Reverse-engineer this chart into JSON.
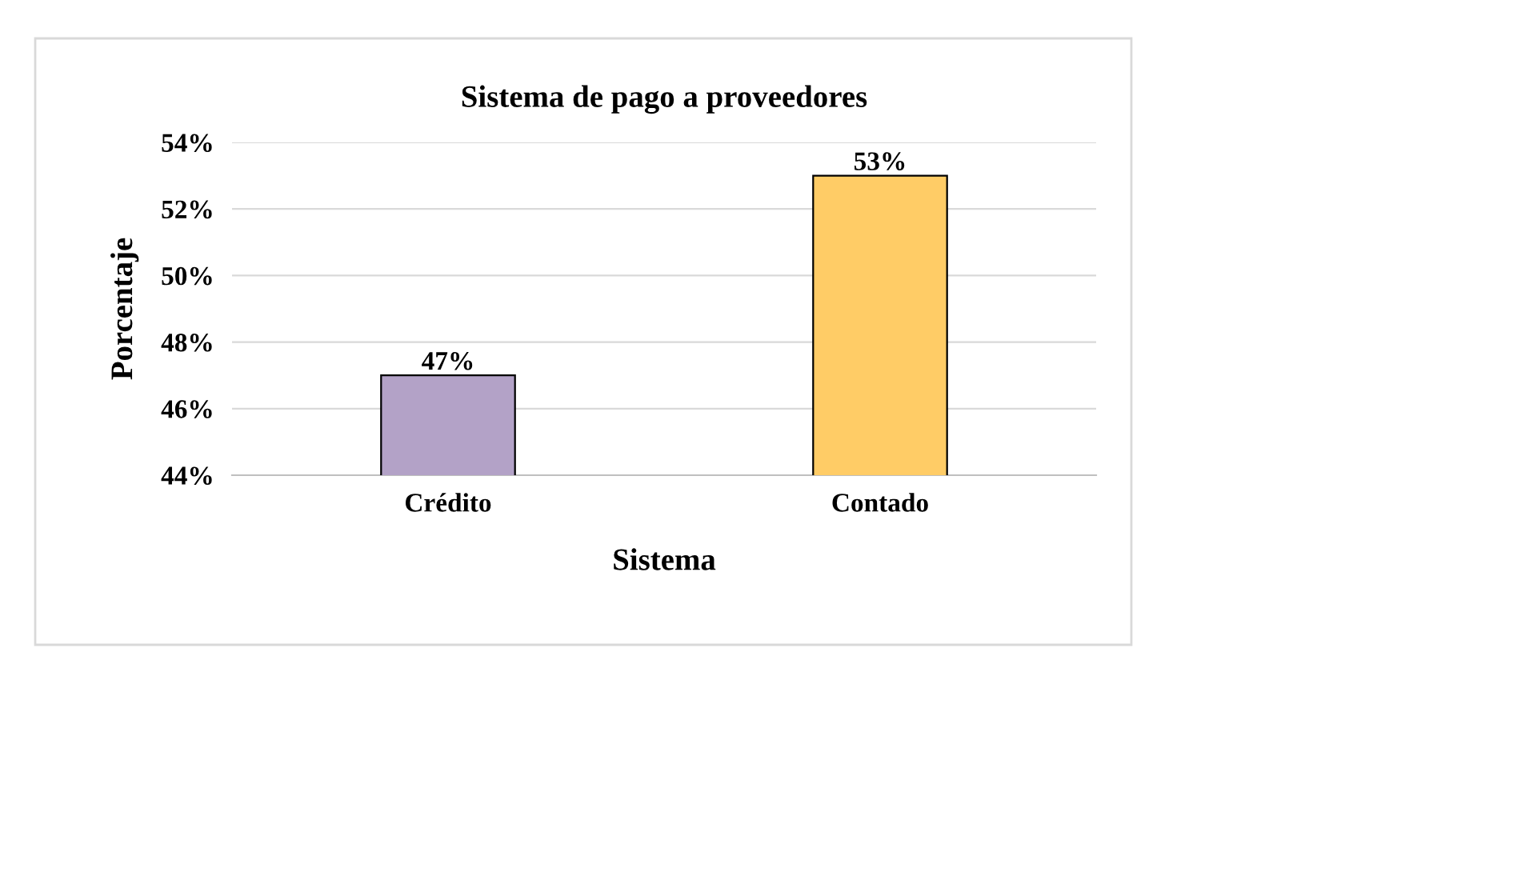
{
  "chart_data": {
    "type": "bar",
    "title": "Sistema de pago a proveedores",
    "xlabel": "Sistema",
    "ylabel": "Porcentaje",
    "categories": [
      "Crédito",
      "Contado"
    ],
    "values": [
      47,
      53
    ],
    "colors": [
      "#b3a2c7",
      "#ffcc66"
    ],
    "value_labels": [
      "47%",
      "53%"
    ],
    "ylim": [
      44,
      54
    ],
    "yticks": [
      {
        "value": 44,
        "label": "44%"
      },
      {
        "value": 46,
        "label": "46%"
      },
      {
        "value": 48,
        "label": "48%"
      },
      {
        "value": 50,
        "label": "50%"
      },
      {
        "value": 52,
        "label": "52%"
      },
      {
        "value": 54,
        "label": "54%"
      }
    ],
    "grid": "y"
  }
}
